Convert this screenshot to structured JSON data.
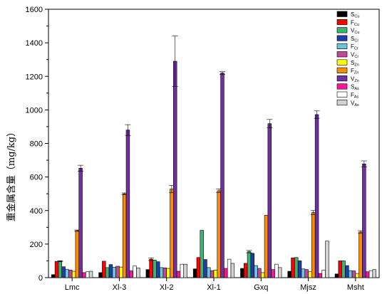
{
  "chart_data": {
    "type": "bar",
    "title": "",
    "xlabel": "",
    "ylabel": "重金属含量（mg/kg）",
    "ylim": [
      0,
      1600
    ],
    "yticks": [
      0,
      200,
      400,
      600,
      800,
      1000,
      1200,
      1400,
      1600
    ],
    "grid": false,
    "legend_position": "top-right",
    "categories": [
      "Lmc",
      "Xl-3",
      "Xl-2",
      "Xl-1",
      "Gxq",
      "Mjsz",
      "Msht"
    ],
    "series": [
      {
        "name": "S",
        "sub": "Cu",
        "color": "#000000",
        "values": [
          18,
          30,
          48,
          52,
          55,
          38,
          22
        ],
        "errors": [
          0,
          0,
          0,
          0,
          0,
          0,
          0
        ]
      },
      {
        "name": "F",
        "sub": "Cu",
        "color": "#ff0000",
        "values": [
          97,
          98,
          110,
          120,
          85,
          118,
          100
        ],
        "errors": [
          0,
          0,
          8,
          0,
          0,
          0,
          0
        ]
      },
      {
        "name": "V",
        "sub": "Cu",
        "color": "#3cb371",
        "values": [
          98,
          60,
          105,
          282,
          155,
          120,
          100
        ],
        "errors": [
          3,
          0,
          0,
          0,
          7,
          0,
          0
        ]
      },
      {
        "name": "S",
        "sub": "Cr",
        "color": "#1e3fa8",
        "values": [
          65,
          78,
          95,
          108,
          145,
          100,
          72
        ],
        "errors": [
          0,
          0,
          0,
          0,
          0,
          0,
          0
        ]
      },
      {
        "name": "F",
        "sub": "Cr",
        "color": "#6fc3df",
        "values": [
          50,
          62,
          60,
          60,
          72,
          52,
          42
        ],
        "errors": [
          0,
          0,
          0,
          0,
          0,
          0,
          0
        ]
      },
      {
        "name": "V",
        "sub": "Cr",
        "color": "#c0479a",
        "values": [
          45,
          68,
          58,
          42,
          55,
          48,
          40
        ],
        "errors": [
          0,
          0,
          0,
          0,
          0,
          0,
          0
        ]
      },
      {
        "name": "S",
        "sub": "Zn",
        "color": "#ffff00",
        "values": [
          38,
          63,
          55,
          45,
          30,
          35,
          25
        ],
        "errors": [
          0,
          0,
          0,
          0,
          0,
          0,
          0
        ]
      },
      {
        "name": "F",
        "sub": "Zn",
        "color": "#ff8c00",
        "values": [
          280,
          500,
          528,
          518,
          372,
          388,
          272
        ],
        "errors": [
          4,
          5,
          22,
          10,
          0,
          12,
          8
        ]
      },
      {
        "name": "V",
        "sub": "Zn",
        "color": "#7030a0",
        "values": [
          652,
          880,
          1290,
          1220,
          918,
          972,
          678
        ],
        "errors": [
          18,
          32,
          150,
          8,
          25,
          22,
          18
        ]
      },
      {
        "name": "S",
        "sub": "As",
        "color": "#ff1493",
        "values": [
          30,
          40,
          38,
          55,
          48,
          25,
          35
        ],
        "errors": [
          0,
          0,
          0,
          0,
          0,
          0,
          0
        ]
      },
      {
        "name": "F",
        "sub": "As",
        "color": "#ffffff",
        "values": [
          35,
          70,
          80,
          110,
          80,
          45,
          42
        ],
        "errors": [
          0,
          0,
          0,
          0,
          0,
          0,
          0
        ]
      },
      {
        "name": "V",
        "sub": "As",
        "color": "#d3d3d3",
        "values": [
          38,
          58,
          80,
          85,
          60,
          218,
          48
        ],
        "errors": [
          0,
          0,
          0,
          0,
          0,
          0,
          0
        ]
      }
    ]
  }
}
